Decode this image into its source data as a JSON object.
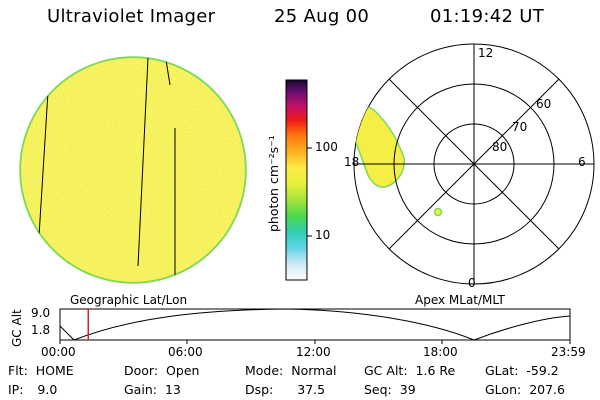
{
  "header": {
    "instrument": "Ultraviolet Imager",
    "date": "25 Aug 00",
    "time": "01:19:42 UT"
  },
  "colorbar": {
    "unit_label": "photon cm⁻²s⁻¹",
    "ticks": [
      "100",
      "10"
    ]
  },
  "polar_plot": {
    "mlt_labels": {
      "top": "12",
      "left": "18",
      "right": "6",
      "bottom": "0"
    },
    "mlat_labels": [
      "60",
      "70",
      "80"
    ],
    "caption": "Apex MLat/MLT"
  },
  "image_caption": "Geographic Lat/Lon",
  "altitude_plot": {
    "ylabel": "GC Alt",
    "yticks": [
      "9.0",
      "1.8"
    ],
    "xticks": [
      "00:00",
      "06:00",
      "12:00",
      "18:00",
      "23:59"
    ],
    "marker_time_hours": 1.33
  },
  "status": {
    "flt": {
      "label": "Flt:",
      "value": "HOME"
    },
    "ip": {
      "label": "IP:",
      "value": "9.0"
    },
    "door": {
      "label": "Door:",
      "value": "Open"
    },
    "gain": {
      "label": "Gain:",
      "value": "13"
    },
    "mode": {
      "label": "Mode:",
      "value": "Normal"
    },
    "dsp": {
      "label": "Dsp:",
      "value": "37.5"
    },
    "gc_alt": {
      "label": "GC Alt:",
      "value": "1.6 Re"
    },
    "seq": {
      "label": "Seq:",
      "value": "39"
    },
    "glat": {
      "label": "GLat:",
      "value": "-59.2"
    },
    "glon": {
      "label": "GLon:",
      "value": "207.6"
    }
  },
  "colors": {
    "earth_fill": "#f5ef45",
    "earth_edge": "#7ed957",
    "marker": "#e02020"
  }
}
